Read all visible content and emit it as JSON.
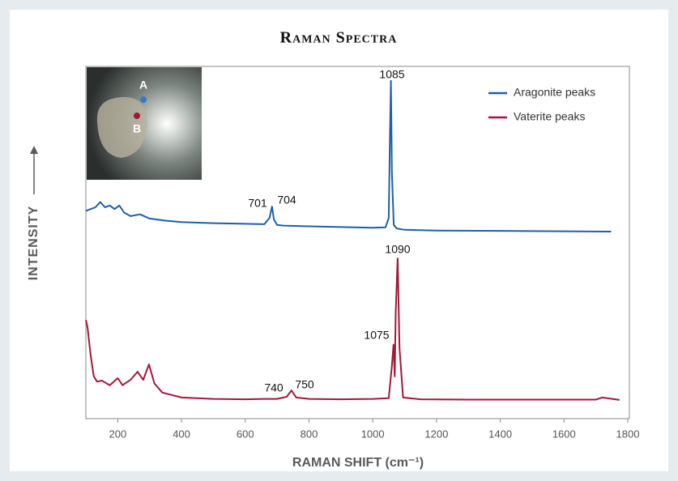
{
  "chart_data": {
    "type": "line",
    "title": "Raman Spectra",
    "xlabel": "RAMAN SHIFT (cm⁻¹)",
    "ylabel": "INTENSITY",
    "inset_labels": [
      "A",
      "B"
    ],
    "annotations": [
      "1085",
      "701",
      "704",
      "1090",
      "1075",
      "740",
      "750"
    ],
    "xlim": [
      100,
      1800
    ],
    "xticks": [
      200,
      400,
      600,
      800,
      1000,
      1200,
      1400,
      1600,
      1800
    ],
    "ylim": [
      0,
      100
    ],
    "legend": "upper right",
    "series": [
      {
        "name": "Aragonite peaks",
        "color": "#1f5fa8",
        "x": [
          100,
          115,
          130,
          145,
          160,
          175,
          190,
          205,
          220,
          240,
          270,
          300,
          350,
          400,
          500,
          600,
          660,
          676,
          684,
          690,
          700,
          720,
          800,
          900,
          1000,
          1040,
          1050,
          1054,
          1057,
          1060,
          1066,
          1075,
          1100,
          1200,
          1400,
          1600,
          1748
        ],
        "values": [
          59,
          59.5,
          60,
          61.5,
          60,
          60.5,
          59.5,
          60.5,
          58.5,
          57.5,
          58,
          56.8,
          56.2,
          55.8,
          55.5,
          55.3,
          55.2,
          57,
          60.2,
          56.5,
          55,
          54.8,
          54.6,
          54.4,
          54.2,
          54.3,
          57,
          80,
          95.9,
          70,
          55,
          54,
          53.6,
          53.4,
          53.3,
          53.2,
          53.1
        ]
      },
      {
        "name": "Vaterite peaks",
        "color": "#a3173a",
        "x": [
          100,
          105,
          115,
          125,
          135,
          150,
          175,
          200,
          215,
          240,
          262,
          280,
          298,
          315,
          340,
          400,
          500,
          600,
          660,
          700,
          730,
          745,
          760,
          800,
          900,
          1000,
          1050,
          1060,
          1065,
          1069,
          1072,
          1078,
          1084,
          1095,
          1150,
          1300,
          1500,
          1700,
          1720,
          1774
        ],
        "values": [
          28,
          26,
          18,
          12,
          10.5,
          10.8,
          9.5,
          11.5,
          9.5,
          11,
          13.3,
          11,
          15.4,
          10,
          7.4,
          6,
          5.6,
          5.5,
          5.6,
          5.6,
          6.2,
          8,
          6,
          5.6,
          5.5,
          5.6,
          5.8,
          15,
          21,
          12,
          30,
          45.5,
          20,
          6,
          5.5,
          5.4,
          5.4,
          5.4,
          6,
          5.3
        ]
      }
    ]
  }
}
